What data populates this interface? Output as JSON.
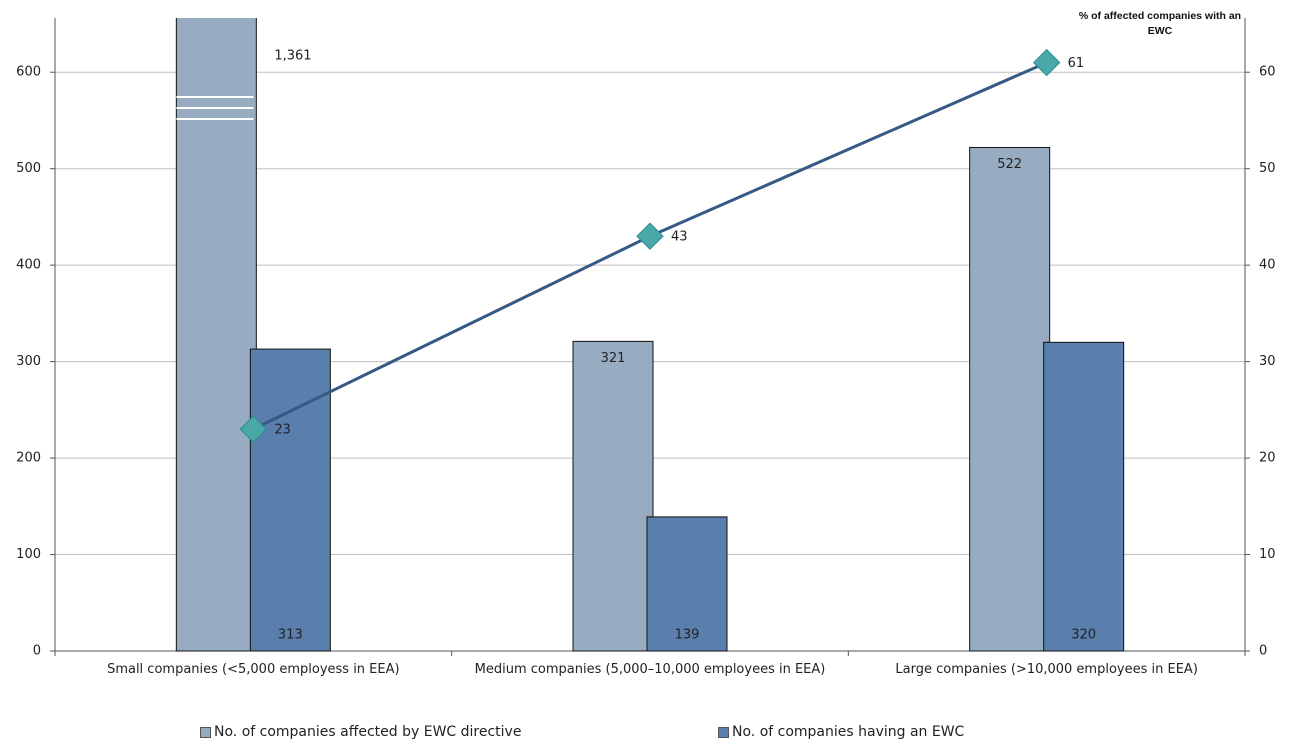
{
  "chart_data": {
    "type": "bar",
    "categories": [
      "Small companies (<5,000 employess in EEA)",
      "Medium companies (5,000–10,000 employees in EEA)",
      "Large companies (>10,000 employees in EEA)"
    ],
    "series": [
      {
        "name": "No. of companies affected by EWC directive",
        "color": "#97acc1",
        "values": [
          1361,
          321,
          522
        ],
        "value_labels": [
          "1,361",
          "321",
          "522"
        ]
      },
      {
        "name": "No. of companies having an EWC",
        "color": "#5b7fad",
        "values": [
          313,
          139,
          320
        ]
      },
      {
        "name": "% of affected companies with an EWC",
        "type": "line",
        "axis": "y2",
        "color": "#355a85",
        "marker_color": "#4aa8a8",
        "values": [
          23,
          43,
          61
        ]
      }
    ],
    "y2_label": "% of affected companies with an EWC",
    "ylim": [
      0,
      650
    ],
    "yticks": [
      0,
      100,
      200,
      300,
      400,
      500,
      600
    ],
    "y2lim": [
      0,
      65
    ],
    "y2ticks": [
      0,
      10,
      20,
      30,
      40,
      50,
      60
    ],
    "grid": true
  }
}
